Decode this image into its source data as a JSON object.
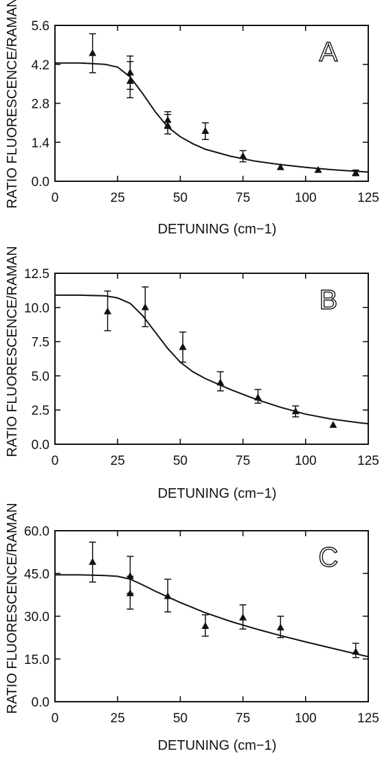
{
  "chart_data": [
    {
      "type": "scatter",
      "panel_label": "A",
      "xlabel": "DETUNING (cm−1)",
      "ylabel": "RATIO FLUORESCENCE/RAMAN",
      "xlim": [
        0,
        125
      ],
      "ylim": [
        0.0,
        5.6
      ],
      "x_ticks": [
        "0",
        "25",
        "50",
        "75",
        "100",
        "125"
      ],
      "y_ticks": [
        "0.0",
        "1.4",
        "2.8",
        "4.2",
        "5.6"
      ],
      "grid": false,
      "points": [
        {
          "x": 15,
          "y": 4.6,
          "err_lo": 3.9,
          "err_hi": 5.3
        },
        {
          "x": 30,
          "y": 3.9,
          "err_lo": 3.3,
          "err_hi": 4.5
        },
        {
          "x": 30,
          "y": 3.6,
          "err_lo": 3.0,
          "err_hi": 4.3
        },
        {
          "x": 45,
          "y": 2.2,
          "err_lo": 1.9,
          "err_hi": 2.5
        },
        {
          "x": 45,
          "y": 2.0,
          "err_lo": 1.7,
          "err_hi": 2.4
        },
        {
          "x": 60,
          "y": 1.8,
          "err_lo": 1.5,
          "err_hi": 2.1
        },
        {
          "x": 75,
          "y": 0.9,
          "err_lo": 0.7,
          "err_hi": 1.1
        },
        {
          "x": 90,
          "y": 0.5
        },
        {
          "x": 105,
          "y": 0.4
        },
        {
          "x": 120,
          "y": 0.3,
          "err_lo": 0.2,
          "err_hi": 0.4
        }
      ],
      "fit_curve": {
        "x": [
          0,
          10,
          20,
          25,
          30,
          35,
          40,
          45,
          50,
          55,
          60,
          70,
          80,
          90,
          100,
          110,
          120,
          125
        ],
        "y": [
          4.25,
          4.25,
          4.2,
          4.1,
          3.75,
          3.15,
          2.5,
          1.95,
          1.6,
          1.35,
          1.15,
          0.9,
          0.72,
          0.6,
          0.5,
          0.42,
          0.36,
          0.33
        ]
      }
    },
    {
      "type": "scatter",
      "panel_label": "B",
      "xlabel": "DETUNING (cm−1)",
      "ylabel": "RATIO FLUORESCENCE/RAMAN",
      "xlim": [
        0,
        125
      ],
      "ylim": [
        0.0,
        12.5
      ],
      "x_ticks": [
        "0",
        "25",
        "50",
        "75",
        "100",
        "125"
      ],
      "y_ticks": [
        "0.0",
        "2.5",
        "5.0",
        "7.5",
        "10.0",
        "12.5"
      ],
      "grid": false,
      "points": [
        {
          "x": 21,
          "y": 9.7,
          "err_lo": 8.3,
          "err_hi": 11.2
        },
        {
          "x": 36,
          "y": 10.0,
          "err_lo": 8.6,
          "err_hi": 11.5
        },
        {
          "x": 51,
          "y": 7.1,
          "err_lo": 6.0,
          "err_hi": 8.2
        },
        {
          "x": 66,
          "y": 4.5,
          "err_lo": 3.9,
          "err_hi": 5.3
        },
        {
          "x": 81,
          "y": 3.4,
          "err_lo": 3.0,
          "err_hi": 4.0
        },
        {
          "x": 96,
          "y": 2.4,
          "err_lo": 2.0,
          "err_hi": 2.8
        },
        {
          "x": 111,
          "y": 1.4
        }
      ],
      "fit_curve": {
        "x": [
          0,
          10,
          20,
          25,
          30,
          35,
          40,
          45,
          50,
          55,
          60,
          70,
          80,
          90,
          100,
          110,
          120,
          125
        ],
        "y": [
          10.9,
          10.9,
          10.85,
          10.7,
          10.3,
          9.4,
          8.2,
          7.0,
          6.0,
          5.3,
          4.8,
          4.0,
          3.3,
          2.7,
          2.2,
          1.85,
          1.6,
          1.5
        ]
      }
    },
    {
      "type": "scatter",
      "panel_label": "C",
      "xlabel": "DETUNING (cm−1)",
      "ylabel": "RATIO FLUORESCENCE/RAMAN",
      "xlim": [
        0,
        125
      ],
      "ylim": [
        0.0,
        60.0
      ],
      "x_ticks": [
        "0",
        "25",
        "50",
        "75",
        "100",
        "125"
      ],
      "y_ticks": [
        "0.0",
        "15.0",
        "30.0",
        "45.0",
        "60.0"
      ],
      "grid": false,
      "points": [
        {
          "x": 15,
          "y": 49,
          "err_lo": 42,
          "err_hi": 56
        },
        {
          "x": 30,
          "y": 44,
          "err_lo": 38,
          "err_hi": 51
        },
        {
          "x": 30,
          "y": 38,
          "err_lo": 32.5,
          "err_hi": 44
        },
        {
          "x": 45,
          "y": 37,
          "err_lo": 31.5,
          "err_hi": 43
        },
        {
          "x": 60,
          "y": 26.5,
          "err_lo": 23,
          "err_hi": 30.5
        },
        {
          "x": 75,
          "y": 29.5,
          "err_lo": 25.5,
          "err_hi": 34
        },
        {
          "x": 90,
          "y": 26,
          "err_lo": 22.5,
          "err_hi": 30
        },
        {
          "x": 120,
          "y": 17.5,
          "err_lo": 15.5,
          "err_hi": 20.5
        }
      ],
      "fit_curve": {
        "x": [
          0,
          10,
          20,
          25,
          30,
          35,
          40,
          45,
          50,
          60,
          70,
          80,
          90,
          100,
          110,
          120,
          125
        ],
        "y": [
          44.5,
          44.5,
          44.3,
          44.0,
          43.0,
          41.0,
          38.8,
          36.8,
          34.8,
          31.2,
          28.2,
          25.6,
          23.2,
          21.0,
          18.9,
          16.8,
          15.8
        ]
      }
    }
  ]
}
